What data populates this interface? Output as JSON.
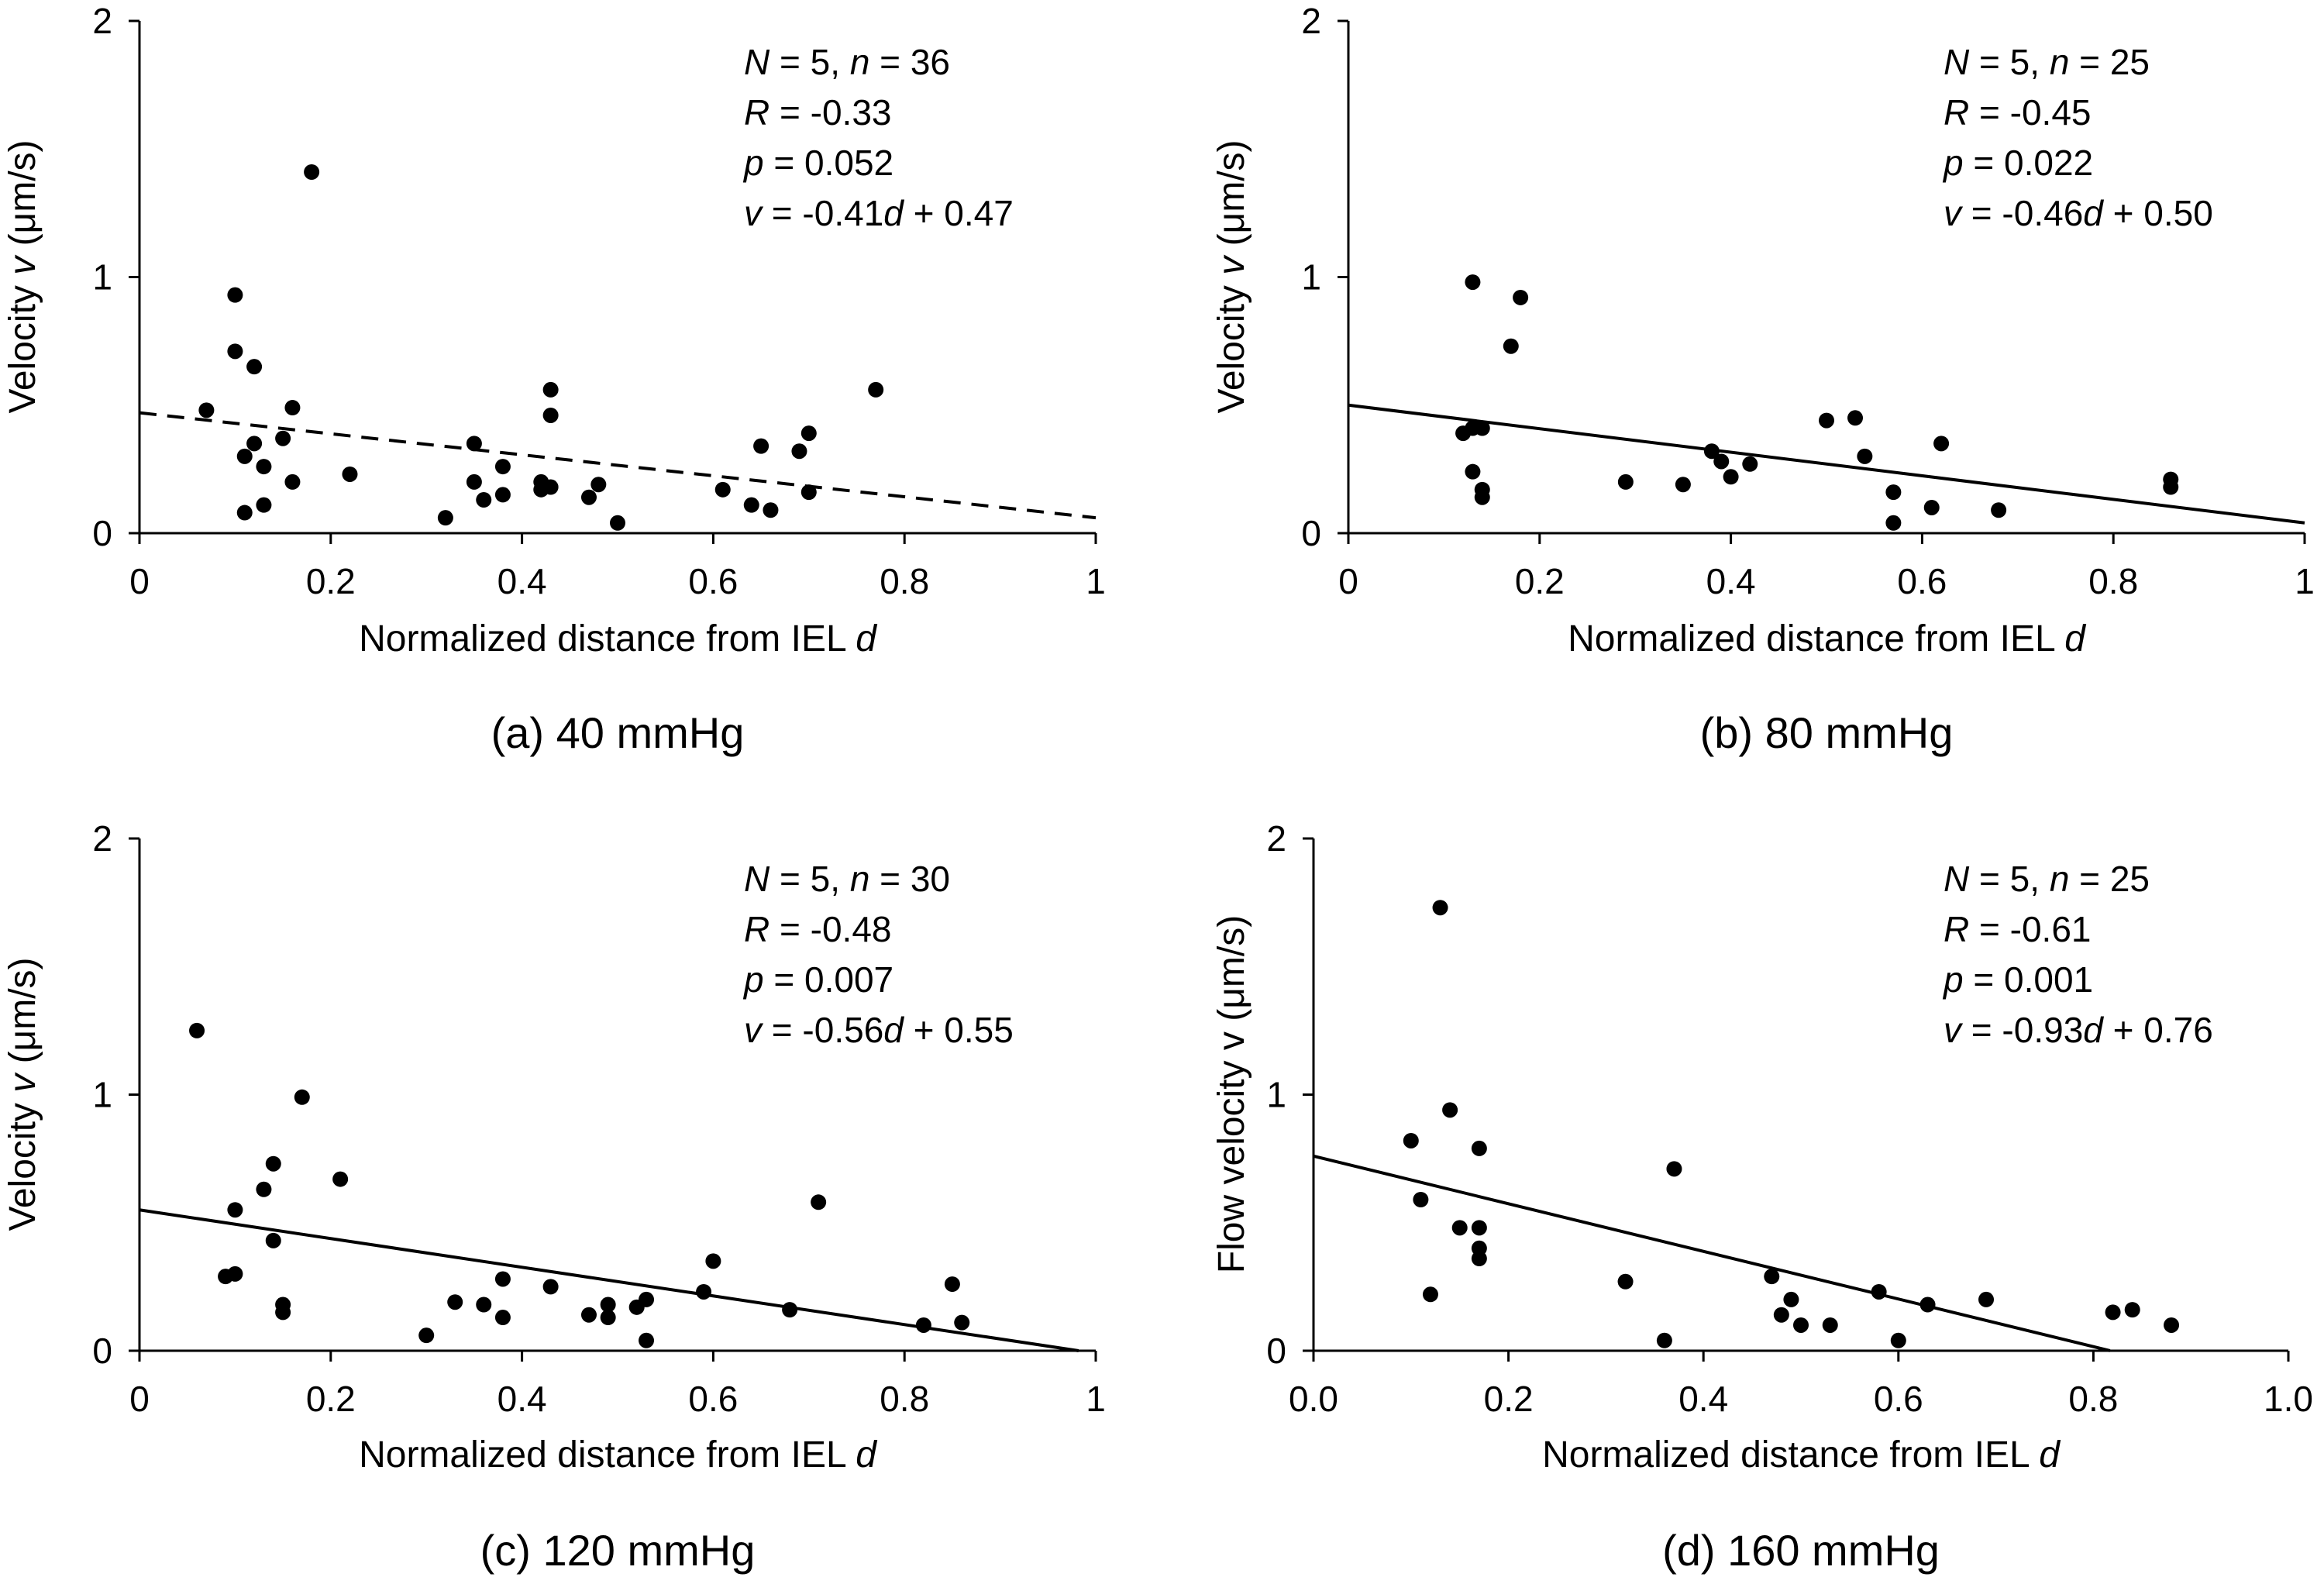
{
  "chart_data": [
    {
      "id": "a",
      "type": "scatter",
      "caption": "(a) 40 mmHg",
      "xlabel": "Normalized distance from IEL ",
      "xlabel_var": "d",
      "ylabel": "Velocity ",
      "ylabel_var": "v",
      "ylabel_unit": " (μm/s)",
      "xlim": [
        0,
        1
      ],
      "ylim": [
        0,
        2
      ],
      "xticks": [
        "0",
        "0.2",
        "0.4",
        "0.6",
        "0.8",
        "1"
      ],
      "yticks": [
        "0",
        "1",
        "2"
      ],
      "stats": {
        "N_label": "N",
        "N_value": " = 5, ",
        "n_label": "n",
        "n_value": " = 36",
        "R_label": "R",
        "R_value": " = -0.33",
        "p_label": "p",
        "p_value": " = 0.052",
        "eq_v": "v",
        "eq_mid": " = -0.41",
        "eq_d": "d",
        "eq_end": " + 0.47"
      },
      "fit": {
        "slope": -0.41,
        "intercept": 0.47,
        "style": "dashed",
        "x_range": [
          0,
          1
        ]
      },
      "points": [
        [
          0.07,
          0.48
        ],
        [
          0.1,
          0.93
        ],
        [
          0.1,
          0.71
        ],
        [
          0.12,
          0.65
        ],
        [
          0.16,
          0.49
        ],
        [
          0.18,
          1.41
        ],
        [
          0.11,
          0.3
        ],
        [
          0.12,
          0.35
        ],
        [
          0.13,
          0.26
        ],
        [
          0.15,
          0.37
        ],
        [
          0.16,
          0.2
        ],
        [
          0.22,
          0.23
        ],
        [
          0.13,
          0.11
        ],
        [
          0.11,
          0.08
        ],
        [
          0.32,
          0.06
        ],
        [
          0.35,
          0.35
        ],
        [
          0.35,
          0.2
        ],
        [
          0.36,
          0.13
        ],
        [
          0.38,
          0.26
        ],
        [
          0.38,
          0.15
        ],
        [
          0.42,
          0.17
        ],
        [
          0.42,
          0.2
        ],
        [
          0.43,
          0.56
        ],
        [
          0.43,
          0.46
        ],
        [
          0.47,
          0.14
        ],
        [
          0.48,
          0.19
        ],
        [
          0.5,
          0.04
        ],
        [
          0.61,
          0.17
        ],
        [
          0.64,
          0.11
        ],
        [
          0.65,
          0.34
        ],
        [
          0.66,
          0.09
        ],
        [
          0.69,
          0.32
        ],
        [
          0.7,
          0.39
        ],
        [
          0.7,
          0.16
        ],
        [
          0.77,
          0.56
        ],
        [
          0.43,
          0.18
        ]
      ]
    },
    {
      "id": "b",
      "type": "scatter",
      "caption": "(b) 80 mmHg",
      "xlabel": "Normalized distance from IEL ",
      "xlabel_var": "d",
      "ylabel": "Velocity ",
      "ylabel_var": "v",
      "ylabel_unit": " (μm/s)",
      "xlim": [
        0,
        1
      ],
      "ylim": [
        0,
        2
      ],
      "xticks": [
        "0",
        "0.2",
        "0.4",
        "0.6",
        "0.8",
        "1"
      ],
      "yticks": [
        "0",
        "1",
        "2"
      ],
      "stats": {
        "N_label": "N",
        "N_value": " = 5, ",
        "n_label": "n",
        "n_value": " = 25",
        "R_label": "R",
        "R_value": " = -0.45",
        "p_label": "p",
        "p_value": " = 0.022",
        "eq_v": "v",
        "eq_mid": " = -0.46",
        "eq_d": "d",
        "eq_end": " + 0.50"
      },
      "fit": {
        "slope": -0.46,
        "intercept": 0.5,
        "style": "solid",
        "x_range": [
          0,
          1
        ]
      },
      "points": [
        [
          0.13,
          0.98
        ],
        [
          0.18,
          0.92
        ],
        [
          0.17,
          0.73
        ],
        [
          0.12,
          0.39
        ],
        [
          0.13,
          0.41
        ],
        [
          0.14,
          0.41
        ],
        [
          0.13,
          0.24
        ],
        [
          0.14,
          0.17
        ],
        [
          0.14,
          0.14
        ],
        [
          0.29,
          0.2
        ],
        [
          0.35,
          0.19
        ],
        [
          0.38,
          0.32
        ],
        [
          0.39,
          0.28
        ],
        [
          0.4,
          0.22
        ],
        [
          0.42,
          0.27
        ],
        [
          0.5,
          0.44
        ],
        [
          0.53,
          0.45
        ],
        [
          0.54,
          0.3
        ],
        [
          0.57,
          0.16
        ],
        [
          0.57,
          0.04
        ],
        [
          0.61,
          0.1
        ],
        [
          0.62,
          0.35
        ],
        [
          0.68,
          0.09
        ],
        [
          0.86,
          0.21
        ],
        [
          0.86,
          0.18
        ]
      ]
    },
    {
      "id": "c",
      "type": "scatter",
      "caption": "(c) 120 mmHg",
      "xlabel": "Normalized distance from IEL ",
      "xlabel_var": "d",
      "ylabel": "Velocity ",
      "ylabel_var": "v",
      "ylabel_unit": " (μm/s)",
      "xlim": [
        0,
        1
      ],
      "ylim": [
        0,
        2
      ],
      "xticks": [
        "0",
        "0.2",
        "0.4",
        "0.6",
        "0.8",
        "1"
      ],
      "yticks": [
        "0",
        "1",
        "2"
      ],
      "stats": {
        "N_label": "N",
        "N_value": " = 5, ",
        "n_label": "n",
        "n_value": " = 30",
        "R_label": "R",
        "R_value": " = -0.48",
        "p_label": "p",
        "p_value": " = 0.007",
        "eq_v": "v",
        "eq_mid": " = -0.56",
        "eq_d": "d",
        "eq_end": " + 0.55"
      },
      "fit": {
        "slope": -0.56,
        "intercept": 0.55,
        "style": "solid",
        "x_range": [
          0,
          0.982
        ]
      },
      "points": [
        [
          0.06,
          1.25
        ],
        [
          0.17,
          0.99
        ],
        [
          0.14,
          0.73
        ],
        [
          0.13,
          0.63
        ],
        [
          0.21,
          0.67
        ],
        [
          0.1,
          0.55
        ],
        [
          0.14,
          0.43
        ],
        [
          0.09,
          0.29
        ],
        [
          0.1,
          0.3
        ],
        [
          0.15,
          0.18
        ],
        [
          0.15,
          0.15
        ],
        [
          0.3,
          0.06
        ],
        [
          0.33,
          0.19
        ],
        [
          0.36,
          0.18
        ],
        [
          0.38,
          0.13
        ],
        [
          0.38,
          0.28
        ],
        [
          0.43,
          0.25
        ],
        [
          0.47,
          0.14
        ],
        [
          0.49,
          0.18
        ],
        [
          0.49,
          0.13
        ],
        [
          0.52,
          0.17
        ],
        [
          0.53,
          0.2
        ],
        [
          0.53,
          0.04
        ],
        [
          0.59,
          0.23
        ],
        [
          0.6,
          0.35
        ],
        [
          0.68,
          0.16
        ],
        [
          0.71,
          0.58
        ],
        [
          0.82,
          0.1
        ],
        [
          0.85,
          0.26
        ],
        [
          0.86,
          0.11
        ]
      ]
    },
    {
      "id": "d",
      "type": "scatter",
      "caption": "(d) 160 mmHg",
      "xlabel": "Normalized distance from IEL ",
      "xlabel_var": "d",
      "ylabel": "Flow velocity v (μm/s)",
      "ylabel_var": "",
      "ylabel_unit": "",
      "xlim": [
        0,
        1
      ],
      "ylim": [
        0,
        2
      ],
      "xticks": [
        "0.0",
        "0.2",
        "0.4",
        "0.6",
        "0.8",
        "1.0"
      ],
      "yticks": [
        "0",
        "1",
        "2"
      ],
      "stats": {
        "N_label": "N",
        "N_value": " = 5, ",
        "n_label": "n",
        "n_value": " = 25",
        "R_label": "R",
        "R_value": " = -0.61",
        "p_label": "p",
        "p_value": " = 0.001",
        "eq_v": "v",
        "eq_mid": " = -0.93",
        "eq_d": "d",
        "eq_end": " + 0.76"
      },
      "fit": {
        "slope": -0.93,
        "intercept": 0.76,
        "style": "solid",
        "x_range": [
          0,
          0.817
        ]
      },
      "points": [
        [
          0.13,
          1.73
        ],
        [
          0.14,
          0.94
        ],
        [
          0.1,
          0.82
        ],
        [
          0.17,
          0.79
        ],
        [
          0.11,
          0.59
        ],
        [
          0.15,
          0.48
        ],
        [
          0.17,
          0.48
        ],
        [
          0.17,
          0.4
        ],
        [
          0.17,
          0.36
        ],
        [
          0.12,
          0.22
        ],
        [
          0.32,
          0.27
        ],
        [
          0.37,
          0.71
        ],
        [
          0.36,
          0.04
        ],
        [
          0.47,
          0.29
        ],
        [
          0.49,
          0.2
        ],
        [
          0.48,
          0.14
        ],
        [
          0.5,
          0.1
        ],
        [
          0.53,
          0.1
        ],
        [
          0.58,
          0.23
        ],
        [
          0.6,
          0.04
        ],
        [
          0.63,
          0.18
        ],
        [
          0.69,
          0.2
        ],
        [
          0.82,
          0.15
        ],
        [
          0.84,
          0.16
        ],
        [
          0.88,
          0.1
        ]
      ]
    }
  ]
}
